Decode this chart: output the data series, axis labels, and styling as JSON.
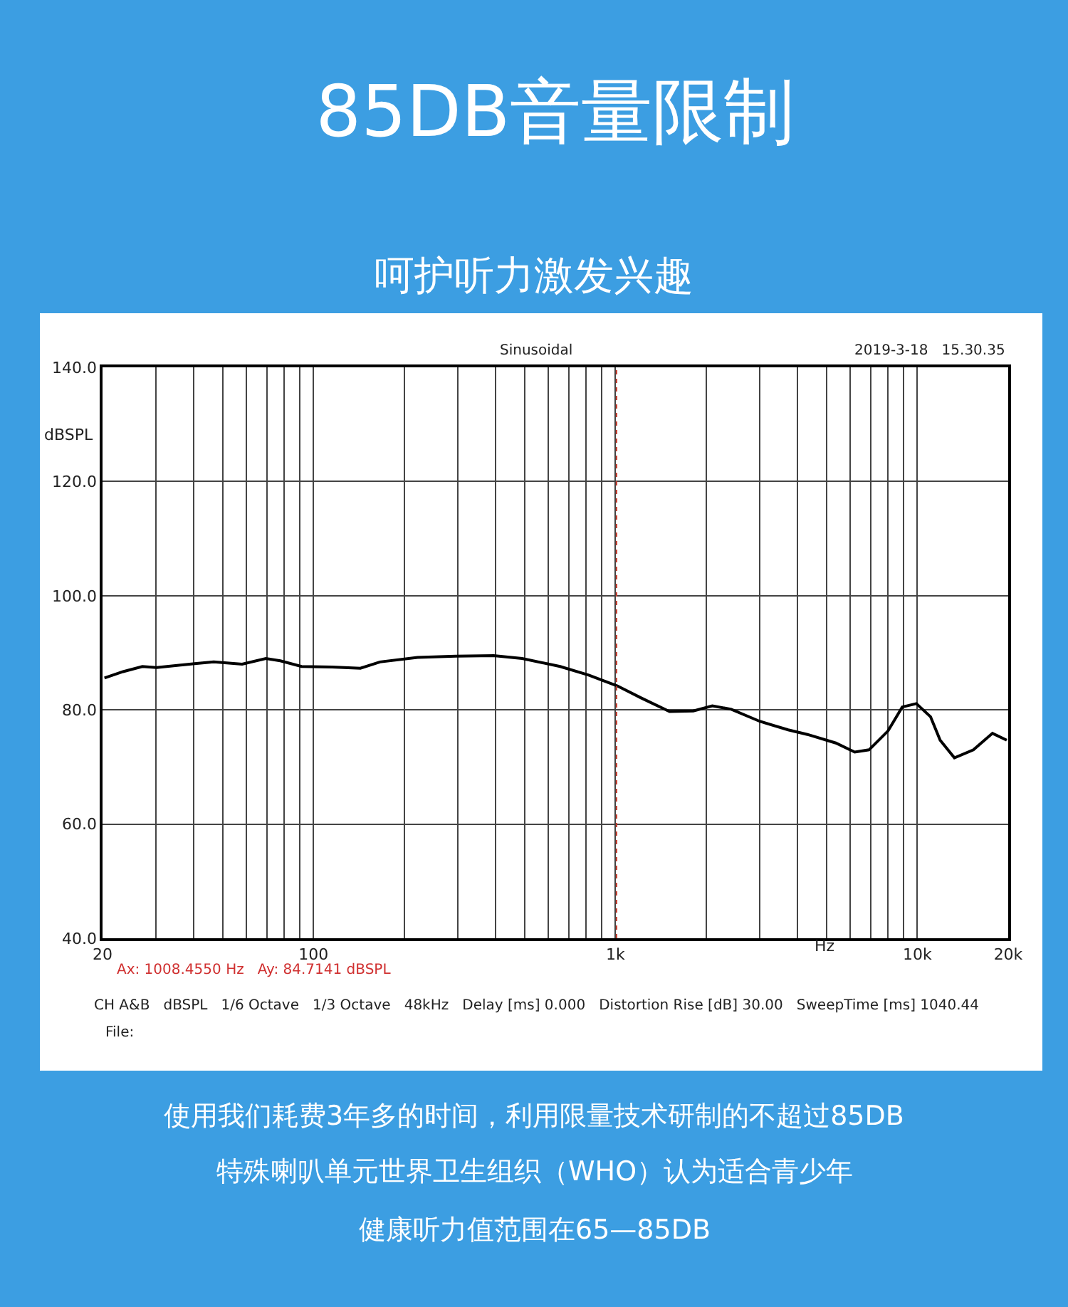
{
  "chart_data": {
    "type": "line",
    "title": "85DB音量限制",
    "subtitle": "呵护听力激发兴趣",
    "xlabel": "Hz",
    "ylabel": "dBSPL",
    "annotations": [
      "Sinusoidal",
      "2019-3-18   15.30.35",
      "Ax: 1008.4550 Hz   Ay: 84.7141 dBSPL",
      "CH A&B   dBSPL   1/6 Octave   1/3 Octave   48kHz   Delay [ms] 0.000   Distortion Rise [dB] 30.00   SweepTime [ms] 1040.44",
      "File:",
      "使用我们耗费3年多的时间，利用限量技术研制的不超过85DB",
      "特殊喇叭单元世界卫生组织（WHO）认为适合青少年",
      "健康听力值范围在65—85DB"
    ],
    "x": [
      20.3,
      23.4,
      27.1,
      30.2,
      40.4,
      46.7,
      58,
      69.5,
      77.6,
      91.3,
      115,
      143,
      166,
      221,
      296,
      395,
      491,
      656,
      816,
      1015,
      1216,
      1511,
      1811,
      2094,
      2420,
      3006,
      3734,
      4323,
      5370,
      6204,
      6918,
      7994,
      8914,
      9928,
      11060,
      11900,
      13270,
      15340,
      17740,
      19780
    ],
    "series": [
      {
        "color": "#000000",
        "values": [
          85.6,
          86.7,
          87.6,
          87.4,
          88.1,
          88.4,
          88.0,
          89.0,
          88.6,
          87.6,
          87.5,
          87.3,
          88.4,
          89.2,
          89.4,
          89.5,
          89.0,
          87.6,
          86.1,
          84.2,
          82.1,
          79.7,
          79.8,
          80.7,
          80.1,
          78.0,
          76.5,
          75.7,
          74.2,
          72.6,
          73.0,
          76.3,
          80.5,
          81.1,
          78.8,
          74.7,
          71.6,
          73.0,
          75.9,
          74.7
        ]
      }
    ],
    "log": "x",
    "xlim": [
      20,
      20000
    ],
    "ylim": [
      40,
      140
    ],
    "xticks": [
      20,
      {
        "value": 30,
        "label": null
      },
      {
        "value": 40,
        "label": null
      },
      {
        "value": 50,
        "label": null
      },
      {
        "value": 60,
        "label": null
      },
      {
        "value": 70,
        "label": null
      },
      {
        "value": 80,
        "label": null
      },
      {
        "value": 90,
        "label": null
      },
      100,
      {
        "value": 200,
        "label": null
      },
      {
        "value": 300,
        "label": null
      },
      {
        "value": 400,
        "label": null
      },
      {
        "value": 500,
        "label": null
      },
      {
        "value": 600,
        "label": null
      },
      {
        "value": 700,
        "label": null
      },
      {
        "value": 800,
        "label": null
      },
      {
        "value": 900,
        "label": null
      },
      {
        "value": 1000,
        "label": "1k"
      },
      {
        "value": 2000,
        "label": null
      },
      {
        "value": 3000,
        "label": null
      },
      {
        "value": 4000,
        "label": null
      },
      {
        "value": 5000,
        "label": null
      },
      {
        "value": 6000,
        "label": null
      },
      {
        "value": 7000,
        "label": null
      },
      {
        "value": 8000,
        "label": null
      },
      {
        "value": 9000,
        "label": null
      },
      {
        "value": 10000,
        "label": "10k"
      },
      {
        "value": 20000,
        "label": "20k"
      }
    ],
    "yticks": [
      {
        "value": 40,
        "label": "40.0"
      },
      {
        "value": 60,
        "label": "60.0"
      },
      {
        "value": 80,
        "label": "80.0"
      },
      {
        "value": 100,
        "label": "100.0"
      },
      {
        "value": 120,
        "label": "120.0"
      },
      {
        "value": 140,
        "label": "140.0"
      }
    ],
    "ref_lines": [
      {
        "axis": "x",
        "value": 1008.455,
        "color": "#c0392b",
        "line_style": "dotted"
      }
    ],
    "grid": true,
    "marker": "none",
    "line_style": "solid"
  }
}
